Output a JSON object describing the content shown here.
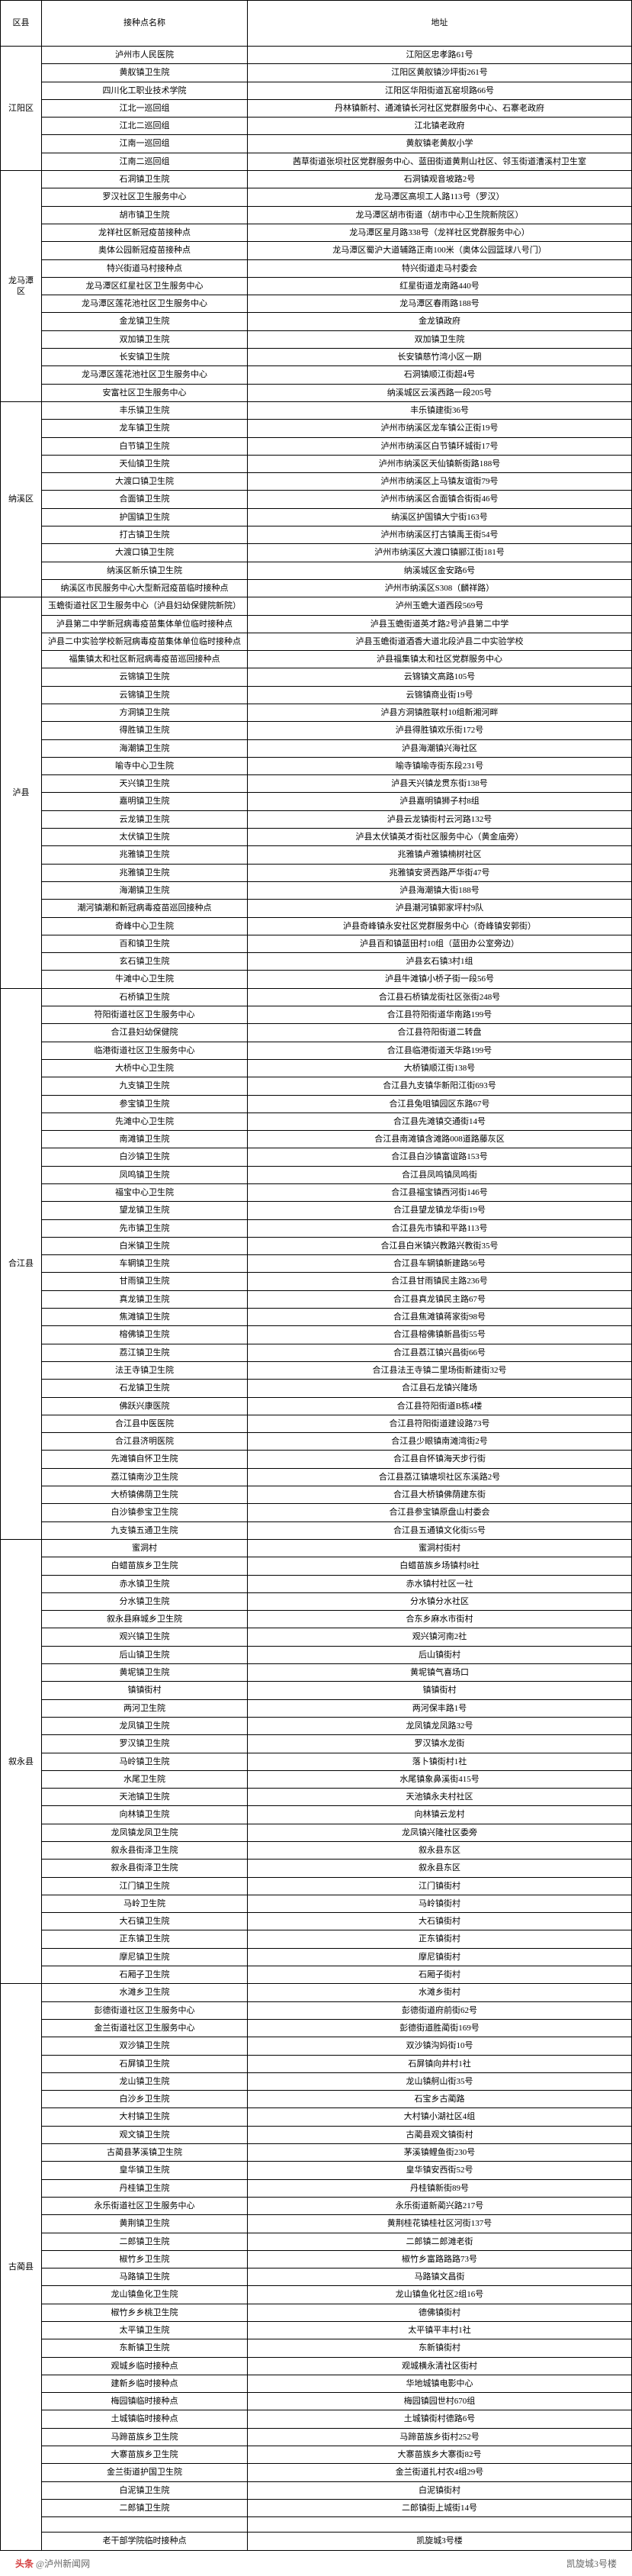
{
  "headers": {
    "district": "区县",
    "name": "接种点名称",
    "addr": "地址"
  },
  "colors": {
    "border": "#000000",
    "background": "#ffffff",
    "footer_text": "#666666",
    "footer_brand": "#d43c3c"
  },
  "footer": {
    "left": "@泸州新闻网",
    "right": "凯旋城3号楼"
  },
  "districts": [
    {
      "name": "江阳区",
      "rows": [
        {
          "n": "泸州市人民医院",
          "a": "江阳区忠孝路61号"
        },
        {
          "n": "黄舣镇卫生院",
          "a": "江阳区黄舣镇沙坪街261号"
        },
        {
          "n": "四川化工职业技术学院",
          "a": "江阳区华阳街道瓦窑坝路66号"
        },
        {
          "n": "江北一巡回组",
          "a": "丹林镇新村、通滩镇长河社区党群服务中心、石寨老政府"
        },
        {
          "n": "江北二巡回组",
          "a": "江北镇老政府"
        },
        {
          "n": "江南一巡回组",
          "a": "黄舣镇老黄舣小学"
        },
        {
          "n": "江南二巡回组",
          "a": "茜草街道张坝社区党群服务中心、蓝田街道黄荆山社区、邻玉街道漕溪村卫生室"
        }
      ]
    },
    {
      "name": "龙马潭区",
      "rows": [
        {
          "n": "石洞镇卫生院",
          "a": "石洞镇观音坡路2号"
        },
        {
          "n": "罗汉社区卫生服务中心",
          "a": "龙马潭区高坝工人路113号（罗汉）"
        },
        {
          "n": "胡市镇卫生院",
          "a": "龙马潭区胡市街道（胡市中心卫生院新院区）"
        },
        {
          "n": "龙祥社区新冠疫苗接种点",
          "a": "龙马潭区星月路338号（龙祥社区党群服务中心）"
        },
        {
          "n": "奥体公园新冠疫苗接种点",
          "a": "龙马潭区蜀沪大道辅路正南100米（奥体公园篮球八号门）"
        },
        {
          "n": "特兴街道马村接种点",
          "a": "特兴街道走马村委会"
        },
        {
          "n": "龙马潭区红星社区卫生服务中心",
          "a": "红星街道龙南路440号"
        },
        {
          "n": "龙马潭区莲花池社区卫生服务中心",
          "a": "龙马潭区春雨路188号"
        },
        {
          "n": "金龙镇卫生院",
          "a": "金龙镇政府"
        },
        {
          "n": "双加镇卫生院",
          "a": "双加镇卫生院"
        },
        {
          "n": "长安镇卫生院",
          "a": "长安镇慈竹湾小区一期"
        },
        {
          "n": "龙马潭区莲花池社区卫生服务中心",
          "a": "石洞镇顺江街超4号"
        },
        {
          "n": "安富社区卫生服务中心",
          "a": "纳溪城区云溪西路一段205号"
        }
      ]
    },
    {
      "name": "纳溪区",
      "rows": [
        {
          "n": "丰乐镇卫生院",
          "a": "丰乐镇建街36号"
        },
        {
          "n": "龙车镇卫生院",
          "a": "泸州市纳溪区龙车镇公正街19号"
        },
        {
          "n": "白节镇卫生院",
          "a": "泸州市纳溪区白节镇环城街17号"
        },
        {
          "n": "天仙镇卫生院",
          "a": "泸州市纳溪区天仙镇新街路188号"
        },
        {
          "n": "大渡口镇卫生院",
          "a": "泸州市纳溪区上马镇友谊街79号"
        },
        {
          "n": "合面镇卫生院",
          "a": "泸州市纳溪区合面镇合街街46号"
        },
        {
          "n": "护国镇卫生院",
          "a": "纳溪区护国镇大宁街163号"
        },
        {
          "n": "打古镇卫生院",
          "a": "泸州市纳溪区打古镇禹王街54号"
        },
        {
          "n": "大渡口镇卫生院",
          "a": "泸州市纳溪区大渡口镇郦江街181号"
        },
        {
          "n": "纳溪区新乐镇卫生院",
          "a": "纳溪城区金安路6号"
        },
        {
          "n": "纳溪区市民服务中心大型新冠疫苗临时接种点",
          "a": "泸州市纳溪区S308（麟祥路）"
        }
      ]
    },
    {
      "name": "泸县",
      "rows": [
        {
          "n": "玉蟾街道社区卫生服务中心（泸县妇幼保健院新院）",
          "a": "泸州玉蟾大道西段569号"
        },
        {
          "n": "泸县第二中学新冠病毒疫苗集体单位临时接种点",
          "a": "泸县玉蟾街道英才路2号泸县第二中学"
        },
        {
          "n": "泸县二中实验学校新冠病毒疫苗集体单位临时接种点",
          "a": "泸县玉蟾街道酒香大道北段泸县二中实验学校"
        },
        {
          "n": "福集镇太和社区新冠病毒疫苗巡回接种点",
          "a": "泸县福集镇太和社区党群服务中心"
        },
        {
          "n": "云锦镇卫生院",
          "a": "云锦镇文高路105号"
        },
        {
          "n": "云锦镇卫生院",
          "a": "云锦镇商业街19号"
        },
        {
          "n": "方洞镇卫生院",
          "a": "泸县方洞镇胜联村10组新湘河畔"
        },
        {
          "n": "得胜镇卫生院",
          "a": "泸县得胜镇欢乐街172号"
        },
        {
          "n": "海潮镇卫生院",
          "a": "泸县海潮镇兴海社区"
        },
        {
          "n": "喻寺中心卫生院",
          "a": "喻寺镇喻寺街东段231号"
        },
        {
          "n": "天兴镇卫生院",
          "a": "泸县天兴镇龙贯东街138号"
        },
        {
          "n": "嘉明镇卫生院",
          "a": "泸县嘉明镇狮子村8组"
        },
        {
          "n": "云龙镇卫生院",
          "a": "泸县云龙镇街村云河路132号"
        },
        {
          "n": "太伏镇卫生院",
          "a": "泸县太伏镇英才街社区服务中心（黄金庙旁）"
        },
        {
          "n": "兆雅镇卫生院",
          "a": "兆雅镇卢雅镇楠树社区"
        },
        {
          "n": "兆雅镇卫生院",
          "a": "兆雅镇安贤西路严华街47号"
        },
        {
          "n": "海潮镇卫生院",
          "a": "泸县海潮镇大街188号"
        },
        {
          "n": "潮河镇潮和新冠病毒疫苗巡回接种点",
          "a": "泸县潮河镇郭家坪村9队"
        },
        {
          "n": "奇峰中心卫生院",
          "a": "泸县奇峰镇永安社区党群服务中心（奇峰镇安郭街）"
        },
        {
          "n": "百和镇卫生院",
          "a": "泸县百和镇蓝田村10组（蓝田办公室旁边）"
        },
        {
          "n": "玄石镇卫生院",
          "a": "泸县玄石镇3村1组"
        },
        {
          "n": "牛滩中心卫生院",
          "a": "泸县牛滩镇小桥子街一段56号"
        }
      ]
    },
    {
      "name": "合江县",
      "rows": [
        {
          "n": "石桥镇卫生院",
          "a": "合江县石桥镇龙街社区张街248号"
        },
        {
          "n": "符阳街道社区卫生服务中心",
          "a": "合江县符阳街道华南路199号"
        },
        {
          "n": "合江县妇幼保健院",
          "a": "合江县符阳街道二转盘"
        },
        {
          "n": "临港街道社区卫生服务中心",
          "a": "合江县临港街道天华路199号"
        },
        {
          "n": "大桥中心卫生院",
          "a": "大桥镇顺江街138号"
        },
        {
          "n": "九支镇卫生院",
          "a": "合江县九支镇华新阳江街693号"
        },
        {
          "n": "参宝镇卫生院",
          "a": "合江县兔咀镇园区东路67号"
        },
        {
          "n": "先滩中心卫生院",
          "a": "合江县先滩镇交通街14号"
        },
        {
          "n": "南滩镇卫生院",
          "a": "合江县南滩镇含滩路008道路藤灰区"
        },
        {
          "n": "白沙镇卫生院",
          "a": "合江县白沙镇富谊路153号"
        },
        {
          "n": "凤鸣镇卫生院",
          "a": "合江县凤鸣镇凤鸣街"
        },
        {
          "n": "福宝中心卫生院",
          "a": "合江县福宝镇西河街146号"
        },
        {
          "n": "望龙镇卫生院",
          "a": "合江县望龙镇龙华街19号"
        },
        {
          "n": "先市镇卫生院",
          "a": "合江县先市镇和平路113号"
        },
        {
          "n": "白米镇卫生院",
          "a": "合江县白米镇兴教路兴教街35号"
        },
        {
          "n": "车辋镇卫生院",
          "a": "合江县车辋镇新建路56号"
        },
        {
          "n": "甘雨镇卫生院",
          "a": "合江县甘雨镇民主路236号"
        },
        {
          "n": "真龙镇卫生院",
          "a": "合江县真龙镇民主路67号"
        },
        {
          "n": "焦滩镇卫生院",
          "a": "合江县焦滩镇蒋家街98号"
        },
        {
          "n": "榕佛镇卫生院",
          "a": "合江县榕佛镇新昌街55号"
        },
        {
          "n": "荔江镇卫生院",
          "a": "合江县荔江镇兴昌街66号"
        },
        {
          "n": "法王寺镇卫生院",
          "a": "合江县法王寺镇二里场街新建街32号"
        },
        {
          "n": "石龙镇卫生院",
          "a": "合江县石龙镇兴隆场"
        },
        {
          "n": "佛跃兴康医院",
          "a": "合江县符阳街道B栋4楼"
        },
        {
          "n": "合江县中医医院",
          "a": "合江县符阳街道建设路73号"
        },
        {
          "n": "合江县济明医院",
          "a": "合江县少眼镇南滩湾街2号"
        },
        {
          "n": "先滩镇自怀卫生院",
          "a": "合江县自怀镇海天步行街"
        },
        {
          "n": "荔江镇南沙卫生院",
          "a": "合江县荔江镇塘坝社区东溪路2号"
        },
        {
          "n": "大桥镇佛荫卫生院",
          "a": "合江县大桥镇佛荫建东街"
        },
        {
          "n": "白沙镇参宝卫生院",
          "a": "合江县参宝镇原盘山村委会"
        },
        {
          "n": "九支镇五通卫生院",
          "a": "合江县五通镇文化街55号"
        }
      ]
    },
    {
      "name": "叙永县",
      "rows": [
        {
          "n": "蜜洞村",
          "a": "蜜洞村街村"
        },
        {
          "n": "白蜡苗族乡卫生院",
          "a": "白蜡苗族乡场镇村8社"
        },
        {
          "n": "赤水镇卫生院",
          "a": "赤水镇村社区一社"
        },
        {
          "n": "分水镇卫生院",
          "a": "分水镇分水社区"
        },
        {
          "n": "叙永县麻城乡卫生院",
          "a": "合东乡麻水市街村"
        },
        {
          "n": "观兴镇卫生院",
          "a": "观兴镇河南2社"
        },
        {
          "n": "后山镇卫生院",
          "a": "后山镇街村"
        },
        {
          "n": "黄坭镇卫生院",
          "a": "黄坭镇气喜场口"
        },
        {
          "n": "镇镇街村",
          "a": "镇镇街村"
        },
        {
          "n": "两河卫生院",
          "a": "两河保丰路1号"
        },
        {
          "n": "龙凤镇卫生院",
          "a": "龙凤镇龙凤路32号"
        },
        {
          "n": "罗汉镇卫生院",
          "a": "罗汉镇水龙街"
        },
        {
          "n": "马岭镇卫生院",
          "a": "落卜镇街村1社"
        },
        {
          "n": "水尾卫生院",
          "a": "水尾镇象鼻溪街415号"
        },
        {
          "n": "天池镇卫生院",
          "a": "天池镇永夫村社区"
        },
        {
          "n": "向林镇卫生院",
          "a": "向林镇云龙村"
        },
        {
          "n": "龙凤镇龙凤卫生院",
          "a": "龙凤镇兴隆社区委旁"
        },
        {
          "n": "叙永县街泽卫生院",
          "a": "叙永县东区"
        },
        {
          "n": "叙永县街泽卫生院",
          "a": "叙永县东区"
        },
        {
          "n": "江门镇卫生院",
          "a": "江门镇街村"
        },
        {
          "n": "马岭卫生院",
          "a": "马岭镇街村"
        },
        {
          "n": "大石镇卫生院",
          "a": "大石镇街村"
        },
        {
          "n": "正东镇卫生院",
          "a": "正东镇街村"
        },
        {
          "n": "摩尼镇卫生院",
          "a": "摩尼镇街村"
        },
        {
          "n": "石厢子卫生院",
          "a": "石厢子街村"
        }
      ]
    },
    {
      "name": "古蔺县",
      "rows": [
        {
          "n": "水滩乡卫生院",
          "a": "水滩乡街村"
        },
        {
          "n": "彭德街道社区卫生服务中心",
          "a": "彭德街道府前街62号"
        },
        {
          "n": "金兰街道社区卫生服务中心",
          "a": "彭德街道胜蔺街169号"
        },
        {
          "n": "双沙镇卫生院",
          "a": "双沙镇沟妈街10号"
        },
        {
          "n": "石屏镇卫生院",
          "a": "石屏镇向井村1社"
        },
        {
          "n": "龙山镇卫生院",
          "a": "龙山镇舸山街35号"
        },
        {
          "n": "白沙乡卫生院",
          "a": "石宝乡古蔺路"
        },
        {
          "n": "大村镇卫生院",
          "a": "大村镇小湖社区4组"
        },
        {
          "n": "观文镇卫生院",
          "a": "古蔺县观文镇街村"
        },
        {
          "n": "古蔺县茅溪镇卫生院",
          "a": "茅溪镇鲤鱼街230号"
        },
        {
          "n": "皇华镇卫生院",
          "a": "皇华镇安西街52号"
        },
        {
          "n": "丹桂镇卫生院",
          "a": "丹桂镇新街89号"
        },
        {
          "n": "永乐街道社区卫生服务中心",
          "a": "永乐街道新蔺兴路217号"
        },
        {
          "n": "黄荆镇卫生院",
          "a": "黄荆桂花镇桂社区河街137号"
        },
        {
          "n": "二郎镇卫生院",
          "a": "二郎镇二郎滩老街"
        },
        {
          "n": "椒竹乡卫生院",
          "a": "椒竹乡富路路路73号"
        },
        {
          "n": "马路镇卫生院",
          "a": "马路镇文昌街"
        },
        {
          "n": "龙山镇鱼化卫生院",
          "a": "龙山镇鱼化社区2组16号"
        },
        {
          "n": "椒竹乡乡桃卫生院",
          "a": "德佛镇街村"
        },
        {
          "n": "太平镇卫生院",
          "a": "太平镇平丰村1社"
        },
        {
          "n": "东新镇卫生院",
          "a": "东新镇街村"
        },
        {
          "n": "观城乡临时接种点",
          "a": "观城横永清社区街村"
        },
        {
          "n": "建新乡临时接种点",
          "a": "华地城镇电影中心"
        },
        {
          "n": "梅园镇临时接种点",
          "a": "梅园镇园世村670组"
        },
        {
          "n": "土城镇临时接种点",
          "a": "土城镇街村德路6号"
        },
        {
          "n": "马蹄苗族乡卫生院",
          "a": "马蹄苗族乡街村252号"
        },
        {
          "n": "大寨苗族乡卫生院",
          "a": "大寨苗族乡大寨街82号"
        },
        {
          "n": "金兰街道护国卫生院",
          "a": "金兰街道扎村农4组29号"
        },
        {
          "n": "白泥镇卫生院",
          "a": "白泥镇街村"
        },
        {
          "n": "二郎镇卫生院",
          "a": "二郎镇街上城街14号"
        },
        {
          "n": "",
          "a": ""
        },
        {
          "n": "老干部学院临时接种点",
          "a": "凯旋城3号楼"
        }
      ]
    }
  ]
}
